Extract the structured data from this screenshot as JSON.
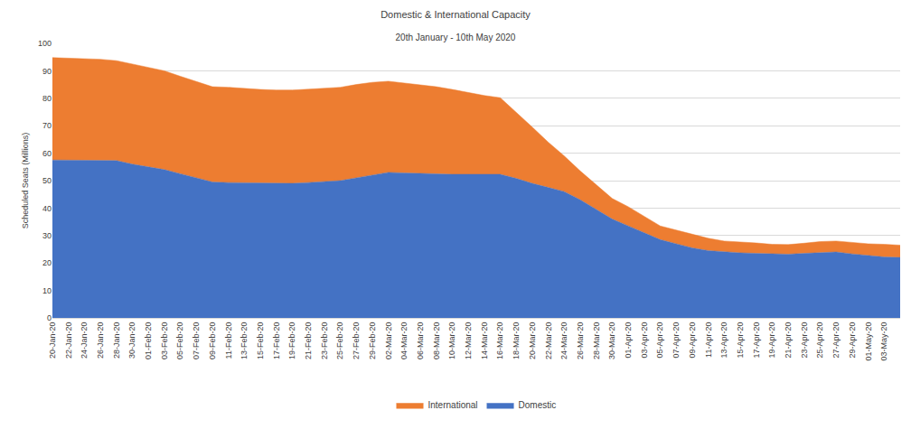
{
  "chart_data": {
    "type": "area",
    "title": "Domestic & International Capacity",
    "subtitle": "20th January - 10th May 2020",
    "y_label": "Scheduled Seats (Millions)",
    "categories": [
      "20-Jan-20",
      "22-Jan-20",
      "24-Jan-20",
      "26-Jan-20",
      "28-Jan-20",
      "30-Jan-20",
      "01-Feb-20",
      "03-Feb-20",
      "05-Feb-20",
      "07-Feb-20",
      "09-Feb-20",
      "11-Feb-20",
      "13-Feb-20",
      "15-Feb-20",
      "17-Feb-20",
      "19-Feb-20",
      "21-Feb-20",
      "23-Feb-20",
      "25-Feb-20",
      "27-Feb-20",
      "29-Feb-20",
      "02-Mar-20",
      "04-Mar-20",
      "06-Mar-20",
      "08-Mar-20",
      "10-Mar-20",
      "12-Mar-20",
      "14-Mar-20",
      "16-Mar-20",
      "18-Mar-20",
      "20-Mar-20",
      "22-Mar-20",
      "24-Mar-20",
      "26-Mar-20",
      "28-Mar-20",
      "30-Mar-20",
      "01-Apr-20",
      "03-Apr-20",
      "05-Apr-20",
      "07-Apr-20",
      "09-Apr-20",
      "11-Apr-20",
      "13-Apr-20",
      "15-Apr-20",
      "17-Apr-20",
      "19-Apr-20",
      "21-Apr-20",
      "23-Apr-20",
      "25-Apr-20",
      "27-Apr-20",
      "29-Apr-20",
      "01-May-20",
      "03-May-20",
      null
    ],
    "series": [
      {
        "name": "Domestic",
        "color": "#4472c4",
        "values": [
          57.5,
          57.5,
          57.5,
          57.5,
          57.3,
          56,
          55,
          54,
          52.5,
          51,
          49.5,
          49.3,
          49.2,
          49,
          49,
          49,
          49.3,
          49.6,
          50,
          51,
          52,
          53,
          52.8,
          52.6,
          52.4,
          52.3,
          52.3,
          52.3,
          52.3,
          50.8,
          49,
          47.5,
          46,
          43,
          39.5,
          36,
          33.5,
          31,
          28.5,
          27,
          25.5,
          24.5,
          24,
          23.7,
          23.5,
          23.3,
          23.2,
          23.5,
          23.8,
          24,
          23.3,
          22.7,
          22.2,
          22
        ]
      },
      {
        "name": "International",
        "color": "#ed7d31",
        "values": [
          37.3,
          37.1,
          36.9,
          36.7,
          36.4,
          36.5,
          36.3,
          36,
          35.5,
          35,
          34.7,
          34.7,
          34.3,
          34.2,
          34,
          34,
          34,
          34,
          34,
          34,
          33.8,
          33.2,
          32.7,
          32.2,
          31.8,
          30.9,
          29.7,
          28.7,
          27.9,
          24.2,
          20.5,
          16.5,
          13,
          10.5,
          9,
          7.5,
          7,
          6,
          5,
          5,
          5,
          4.5,
          4,
          4,
          3.8,
          3.5,
          3.5,
          3.7,
          4,
          4,
          4.2,
          4.3,
          4.6,
          4.5
        ]
      }
    ],
    "ylim": [
      0,
      100
    ],
    "yticks": [
      0,
      10,
      20,
      30,
      40,
      50,
      60,
      70,
      80,
      90,
      100
    ],
    "stacked": true,
    "grid": true,
    "legend": "bottom"
  }
}
